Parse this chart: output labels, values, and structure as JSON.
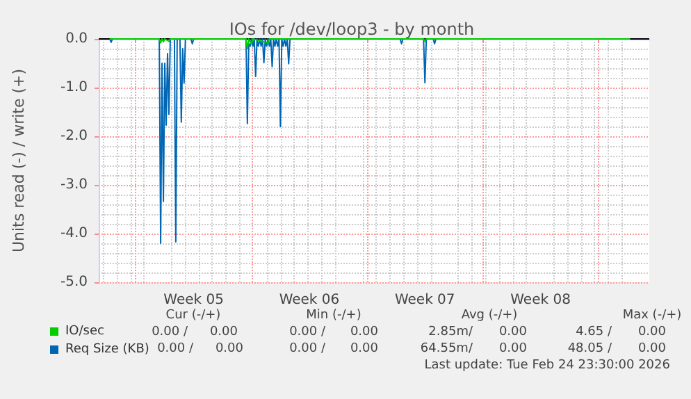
{
  "chart_data": {
    "type": "line",
    "title": "IOs for /dev/loop3 - by month",
    "ylabel": "Units read (-) / write (+)",
    "xlim": [
      "2026-01-23T18:00",
      "2026-02-26T02:00"
    ],
    "xticks": [
      {
        "value": "2026-01-26",
        "label": null
      },
      {
        "value": "2026-01-29T12:00",
        "label": "Week 05"
      },
      {
        "value": "2026-02-02",
        "label": null
      },
      {
        "value": "2026-02-05T12:00",
        "label": "Week 06"
      },
      {
        "value": "2026-02-09",
        "label": null
      },
      {
        "value": "2026-02-12T12:00",
        "label": "Week 07"
      },
      {
        "value": "2026-02-16",
        "label": null
      },
      {
        "value": "2026-02-19T12:00",
        "label": "Week 08"
      },
      {
        "value": "2026-02-23",
        "label": null
      }
    ],
    "ylim": [
      -5,
      0
    ],
    "yticks": [
      {
        "value": -5,
        "label": "-5.0"
      },
      {
        "value": -4,
        "label": "-4.0"
      },
      {
        "value": -3,
        "label": "-3.0"
      },
      {
        "value": -2,
        "label": "-2.0"
      },
      {
        "value": -1,
        "label": "-1.0"
      },
      {
        "value": 0,
        "label": "0.0"
      }
    ],
    "grid": true,
    "legend": "bottom",
    "marker": "none",
    "series": [
      {
        "name": "Req Size (KB)",
        "color": "#0066b3",
        "x": [
          "2026-01-24T10:00",
          "2026-01-24T12:00",
          "2026-01-24T14:00",
          "2026-01-27T10:00",
          "2026-01-27T12:00",
          "2026-01-27T14:00",
          "2026-01-27T16:00",
          "2026-01-27T18:00",
          "2026-01-27T20:00",
          "2026-01-27T22:00",
          "2026-01-28T00:00",
          "2026-01-28T02:00",
          "2026-01-28T08:00",
          "2026-01-28T10:00",
          "2026-01-28T12:00",
          "2026-01-28T16:00",
          "2026-01-28T18:00",
          "2026-01-28T20:00",
          "2026-01-28T22:00",
          "2026-01-29T00:00",
          "2026-01-29T08:00",
          "2026-01-29T10:00",
          "2026-01-29T12:00",
          "2026-02-01T16:00",
          "2026-02-01T18:00",
          "2026-02-01T20:00",
          "2026-02-01T22:00",
          "2026-02-02T00:00",
          "2026-02-02T02:00",
          "2026-02-02T04:00",
          "2026-02-02T06:00",
          "2026-02-02T08:00",
          "2026-02-02T10:00",
          "2026-02-02T12:00",
          "2026-02-02T14:00",
          "2026-02-02T16:00",
          "2026-02-02T18:00",
          "2026-02-02T20:00",
          "2026-02-02T22:00",
          "2026-02-03T00:00",
          "2026-02-03T02:00",
          "2026-02-03T04:00",
          "2026-02-03T06:00",
          "2026-02-03T08:00",
          "2026-02-03T10:00",
          "2026-02-03T12:00",
          "2026-02-03T14:00",
          "2026-02-03T16:00",
          "2026-02-03T18:00",
          "2026-02-03T20:00",
          "2026-02-03T22:00",
          "2026-02-04T00:00",
          "2026-02-04T02:00",
          "2026-02-04T04:00",
          "2026-02-04T06:00",
          "2026-02-04T08:00",
          "2026-02-11T00:00",
          "2026-02-11T02:00",
          "2026-02-11T04:00",
          "2026-02-12T10:00",
          "2026-02-12T12:00",
          "2026-02-12T14:00",
          "2026-02-13T00:00",
          "2026-02-13T02:00",
          "2026-02-13T04:00",
          "2026-02-24T22:00"
        ],
        "values": [
          0,
          -0.07,
          0,
          0,
          -4.2,
          -0.5,
          -3.34,
          -0.5,
          -1.77,
          -0.3,
          -1.55,
          0,
          0,
          -4.17,
          0,
          0,
          -1.71,
          -0.2,
          -0.91,
          0,
          0,
          -0.1,
          0,
          0,
          -1.74,
          -0.1,
          -0.15,
          0,
          -0.15,
          0,
          -0.77,
          0,
          -0.15,
          0,
          -0.15,
          0,
          -0.49,
          0,
          -0.15,
          0,
          -0.15,
          0,
          -0.57,
          0,
          -0.15,
          0,
          -0.15,
          0,
          -1.8,
          0,
          -0.15,
          0,
          -0.15,
          0,
          -0.51,
          0,
          0,
          -0.1,
          0,
          0,
          -0.9,
          0,
          0,
          -0.1,
          0,
          0
        ]
      },
      {
        "name": "IO/sec",
        "color": "#00cc00",
        "x": [
          "2026-01-24T10:00",
          "2026-01-27T10:00",
          "2026-01-27T12:00",
          "2026-01-27T14:00",
          "2026-01-27T16:00",
          "2026-01-27T18:00",
          "2026-01-28T00:00",
          "2026-01-28T02:00",
          "2026-02-01T16:00",
          "2026-02-01T18:00",
          "2026-02-01T20:00",
          "2026-02-02T00:00",
          "2026-02-02T02:00",
          "2026-02-03T00:00",
          "2026-02-03T02:00",
          "2026-02-12T10:00",
          "2026-02-12T12:00",
          "2026-02-12T14:00",
          "2026-02-24T22:00"
        ],
        "values": [
          0,
          0,
          -0.08,
          0,
          -0.06,
          0,
          -0.05,
          0,
          0,
          -0.2,
          0,
          -0.1,
          0,
          -0.08,
          0,
          0,
          -0.05,
          0,
          0
        ]
      }
    ],
    "annotations": [
      "Cur (-/+)",
      "Min (-/+)",
      "Avg (-/+)",
      "Max (-/+)",
      "0.00 /",
      "0.00",
      "0.00 /",
      "0.00",
      "2.85m/",
      "0.00",
      "4.65 /",
      "0.00",
      "0.00 /",
      "0.00",
      "0.00 /",
      "0.00",
      "64.55m/",
      "0.00",
      "48.05 /",
      "0.00",
      "Last update: Tue Feb 24 23:30:00 2026"
    ]
  }
}
